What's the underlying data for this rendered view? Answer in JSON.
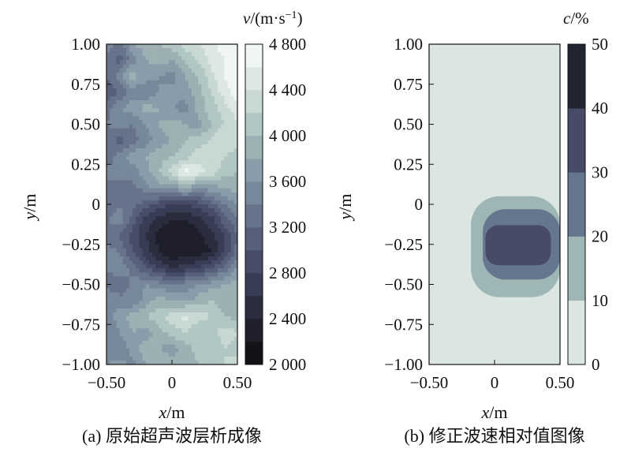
{
  "chart_data": [
    {
      "type": "heatmap",
      "subtitle": "(a) 原始超声波层析成像",
      "xlabel": "x/m",
      "ylabel": "y/m",
      "xlim": [
        -0.5,
        0.5
      ],
      "ylim": [
        -1.0,
        1.0
      ],
      "x_ticks": [
        "−0.50",
        "0",
        "0.50"
      ],
      "y_ticks": [
        "1.00",
        "0.75",
        "0.50",
        "0.25",
        "0",
        "−0.25",
        "−0.50",
        "−0.75",
        "−1.00"
      ],
      "colorbar": {
        "label": "v/(m·s−1)",
        "range": [
          2000,
          4800
        ],
        "ticks": [
          "4 800",
          "4 400",
          "4 000",
          "3 600",
          "3 200",
          "2 800",
          "2 400",
          "2 000"
        ],
        "levels": [
          2000,
          2200,
          2400,
          2600,
          2800,
          3000,
          3200,
          3400,
          3600,
          3800,
          4000,
          4200,
          4400,
          4600,
          4800
        ],
        "colors": [
          "#121217",
          "#1e1f2b",
          "#2b2d3f",
          "#383c55",
          "#474c68",
          "#56607b",
          "#67738b",
          "#78889b",
          "#8a9ca9",
          "#9db1b4",
          "#b2c6c4",
          "#c8d9d4",
          "#dde8e3",
          "#f0f6f3"
        ]
      },
      "x": [
        -0.5,
        -0.4,
        -0.3,
        -0.2,
        -0.1,
        0.0,
        0.1,
        0.2,
        0.3,
        0.4,
        0.5
      ],
      "y": [
        1.0,
        0.9,
        0.8,
        0.7,
        0.6,
        0.5,
        0.4,
        0.3,
        0.2,
        0.1,
        0.0,
        -0.1,
        -0.2,
        -0.3,
        -0.4,
        -0.5,
        -0.6,
        -0.7,
        -0.8,
        -0.9,
        -1.0
      ],
      "values": [
        [
          3500,
          3300,
          3800,
          3900,
          4000,
          4100,
          4300,
          4400,
          4500,
          4700,
          4800
        ],
        [
          3300,
          3100,
          3500,
          3800,
          3900,
          3800,
          4000,
          4200,
          4500,
          4600,
          4800
        ],
        [
          3200,
          3500,
          3900,
          3700,
          3600,
          3500,
          3800,
          4000,
          4300,
          4600,
          4800
        ],
        [
          3000,
          3200,
          3500,
          3400,
          3600,
          3700,
          3700,
          3900,
          4200,
          4500,
          4700
        ],
        [
          3300,
          3600,
          3700,
          3900,
          3800,
          3600,
          3500,
          3900,
          4100,
          4300,
          4500
        ],
        [
          3400,
          3500,
          3400,
          3600,
          3800,
          3900,
          3800,
          3700,
          4000,
          4200,
          4400
        ],
        [
          3300,
          3100,
          3300,
          3500,
          3700,
          3800,
          4000,
          4100,
          4200,
          4400,
          4300
        ],
        [
          3200,
          3500,
          3700,
          3800,
          3900,
          4000,
          4100,
          4300,
          4400,
          4200,
          4100
        ],
        [
          3500,
          3600,
          3500,
          3700,
          4000,
          4300,
          4700,
          4500,
          4300,
          4100,
          4000
        ],
        [
          3300,
          3200,
          3300,
          3500,
          3700,
          3600,
          3800,
          3600,
          3700,
          3800,
          3900
        ],
        [
          3200,
          3400,
          3300,
          3100,
          2900,
          2800,
          2800,
          2900,
          3100,
          3400,
          3600
        ],
        [
          3400,
          3500,
          3100,
          2700,
          2500,
          2400,
          2400,
          2500,
          2700,
          3100,
          3400
        ],
        [
          3300,
          3200,
          2900,
          2600,
          2300,
          2200,
          2200,
          2300,
          2500,
          2800,
          3200
        ],
        [
          3500,
          3400,
          3000,
          2700,
          2400,
          2200,
          2300,
          2300,
          2400,
          2800,
          3300
        ],
        [
          3400,
          3600,
          3300,
          3000,
          2800,
          2600,
          2700,
          2800,
          3000,
          3300,
          3600
        ],
        [
          3300,
          3200,
          3500,
          3600,
          3500,
          3400,
          3500,
          3600,
          3700,
          3800,
          3900
        ],
        [
          3600,
          3500,
          3400,
          3700,
          3900,
          3800,
          3700,
          3900,
          4000,
          3900,
          3800
        ],
        [
          3500,
          3700,
          3900,
          4000,
          4100,
          4300,
          4500,
          4300,
          4200,
          4000,
          3900
        ],
        [
          3400,
          3600,
          3800,
          3700,
          3900,
          4100,
          4200,
          4000,
          4100,
          4300,
          4200
        ],
        [
          3500,
          3400,
          3700,
          3900,
          3800,
          3700,
          3900,
          4100,
          4000,
          4200,
          4100
        ],
        [
          3600,
          3700,
          3500,
          3800,
          4000,
          3900,
          3800,
          4000,
          4100,
          4200,
          4300
        ]
      ]
    },
    {
      "type": "heatmap",
      "subtitle": "(b) 修正波速相对值图像",
      "xlabel": "x/m",
      "ylabel": "y/m",
      "xlim": [
        -0.5,
        0.5
      ],
      "ylim": [
        -1.0,
        1.0
      ],
      "x_ticks": [
        "−0.50",
        "0",
        "0.50"
      ],
      "y_ticks": [
        "1.00",
        "0.75",
        "0.50",
        "0.25",
        "0",
        "−0.25",
        "−0.50",
        "−0.75",
        "−1.00"
      ],
      "colorbar": {
        "label": "c/%",
        "range": [
          0,
          50
        ],
        "ticks": [
          "50",
          "40",
          "30",
          "20",
          "10",
          "0"
        ],
        "levels": [
          0,
          10,
          20,
          30,
          40,
          50
        ],
        "colors": [
          "#dbe6e2",
          "#9fb6b6",
          "#67768f",
          "#474b68",
          "#232431"
        ]
      },
      "regions": [
        {
          "level_range": [
            10,
            20
          ],
          "x_range": [
            -0.18,
            0.5
          ],
          "y_range": [
            -0.58,
            0.05
          ]
        },
        {
          "level_range": [
            20,
            30
          ],
          "x_range": [
            -0.09,
            0.5
          ],
          "y_range": [
            -0.47,
            -0.03
          ]
        },
        {
          "level_range": [
            30,
            40
          ],
          "x_range": [
            -0.07,
            0.43
          ],
          "y_range": [
            -0.38,
            -0.13
          ]
        }
      ]
    }
  ]
}
